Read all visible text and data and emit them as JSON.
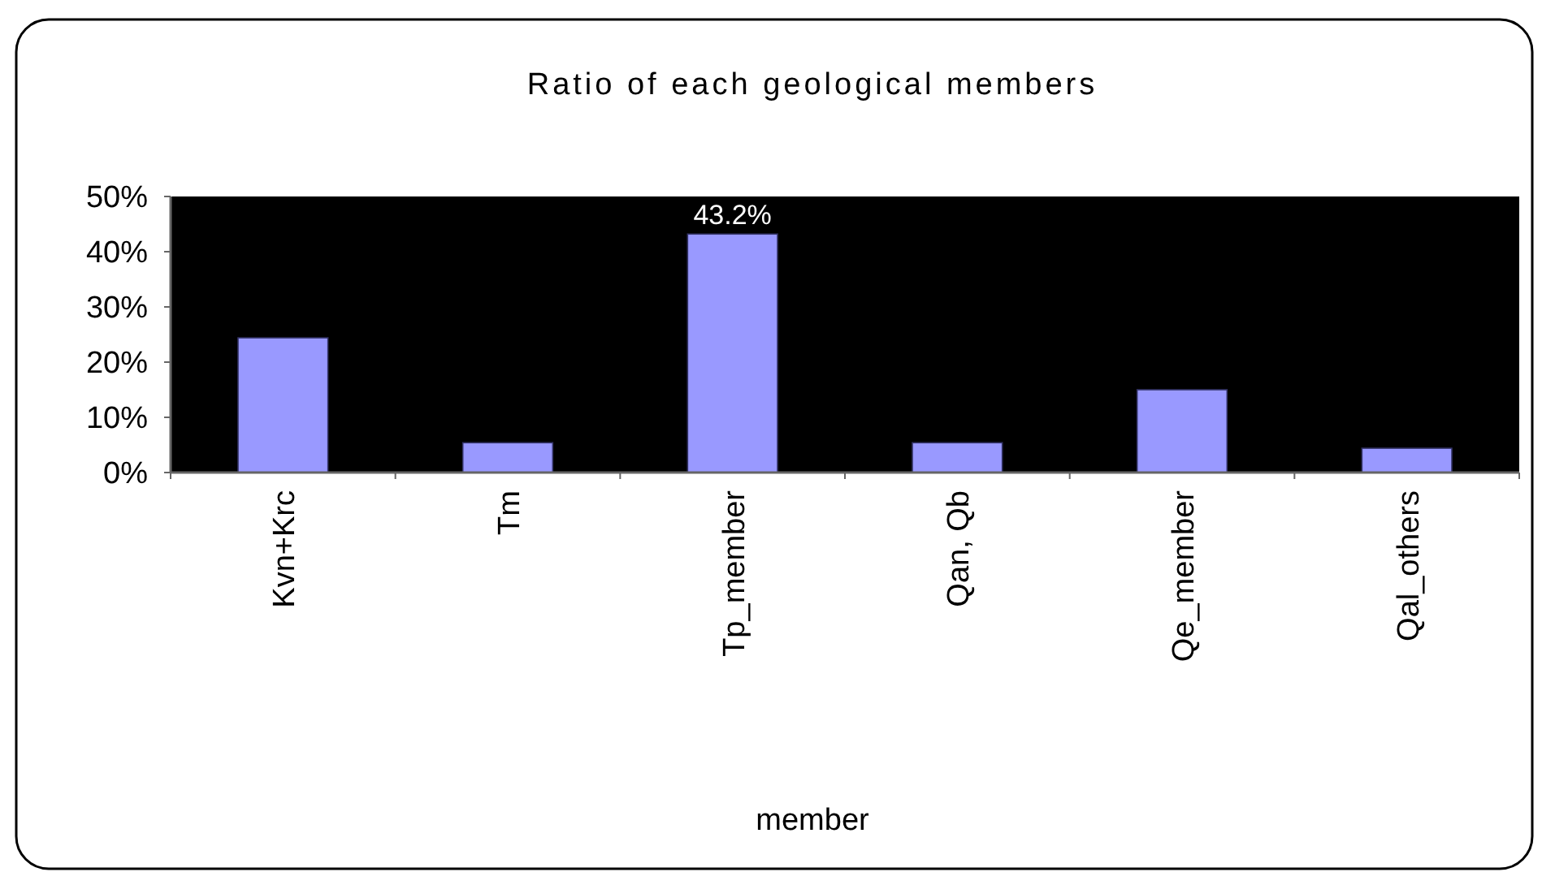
{
  "chart_data": {
    "type": "bar",
    "title": "Ratio of each geological members",
    "xlabel": "member",
    "categories": [
      "Kvn+Krc",
      "Tm",
      "Tp_member",
      "Qan, Qb",
      "Qe_member",
      "Qal_others"
    ],
    "values": [
      24.4,
      5.4,
      43.2,
      5.4,
      15.0,
      4.4
    ],
    "value_labels": [
      null,
      null,
      "43.2%",
      null,
      null,
      null
    ],
    "color": "#9999ff",
    "ylim": [
      0,
      50
    ],
    "yticks": [
      {
        "value": 0,
        "label": "0%"
      },
      {
        "value": 10,
        "label": "10%"
      },
      {
        "value": 20,
        "label": "20%"
      },
      {
        "value": 30,
        "label": "30%"
      },
      {
        "value": 40,
        "label": "40%"
      },
      {
        "value": 50,
        "label": "50%"
      }
    ],
    "grid": false
  }
}
